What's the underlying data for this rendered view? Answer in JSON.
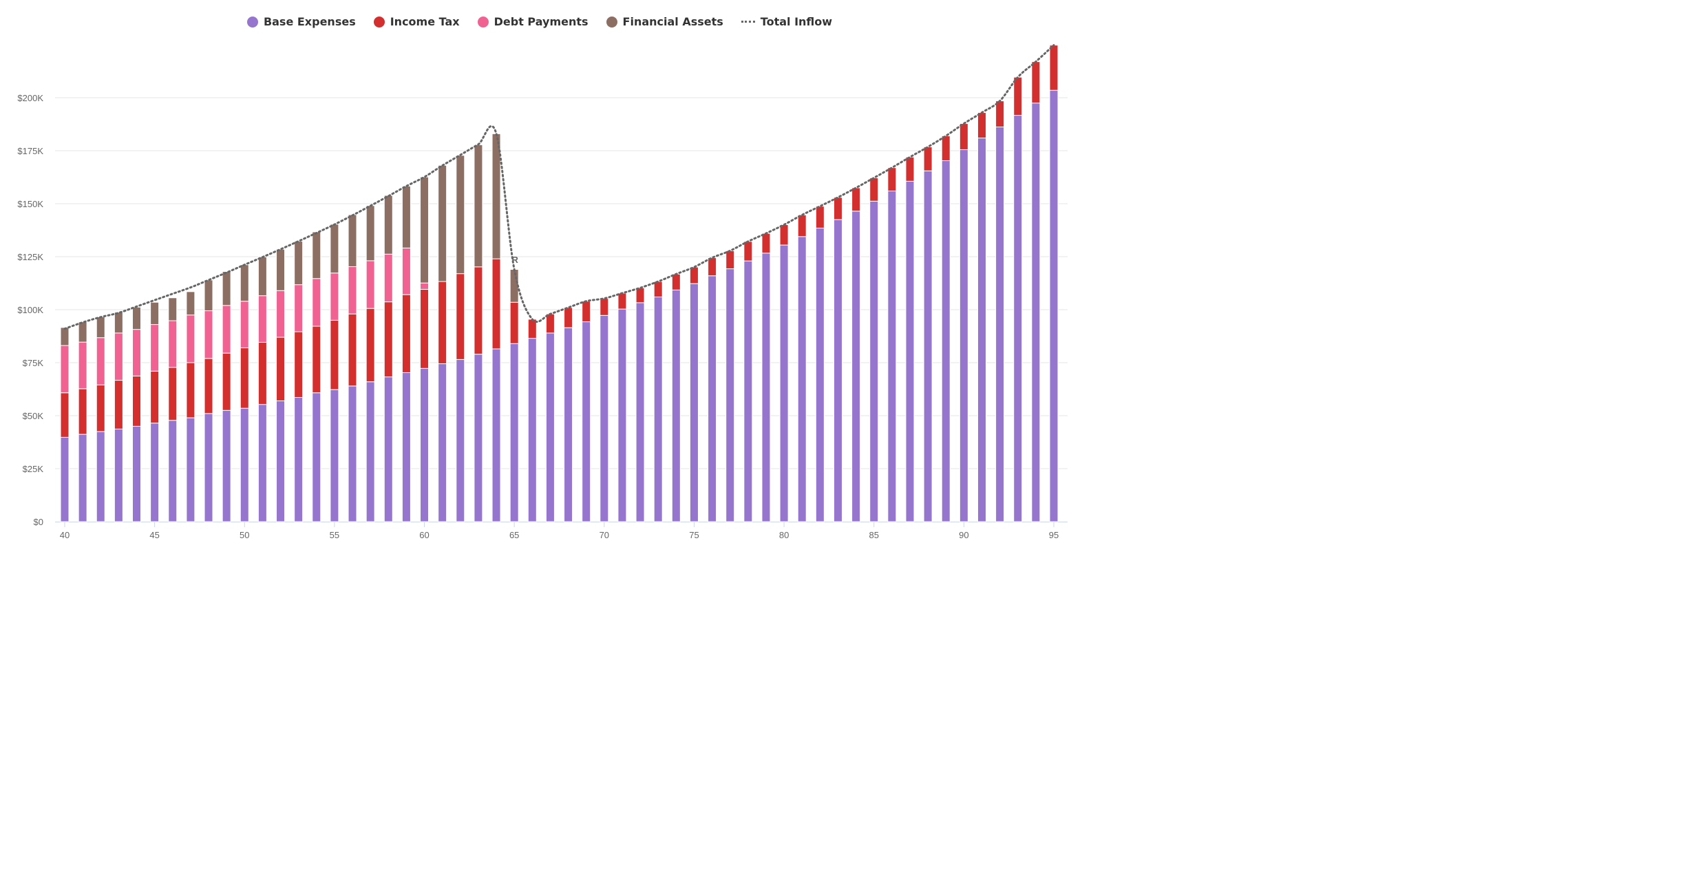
{
  "legend": {
    "base_expenses": "Base Expenses",
    "income_tax": "Income Tax",
    "debt_payments": "Debt Payments",
    "financial_assets": "Financial Assets",
    "total_inflow": "Total Inflow"
  },
  "colors": {
    "base_expenses": "#9575cd",
    "income_tax": "#d32f2f",
    "debt_payments": "#f06292",
    "financial_assets": "#8d6e63",
    "total_inflow": "#666666",
    "grid": "#e6e6e6",
    "axis_text": "#666666"
  },
  "chart_data": {
    "type": "bar",
    "stacked": true,
    "x": [
      40,
      41,
      42,
      43,
      44,
      45,
      46,
      47,
      48,
      49,
      50,
      51,
      52,
      53,
      54,
      55,
      56,
      57,
      58,
      59,
      60,
      61,
      62,
      63,
      64,
      65,
      66,
      67,
      68,
      69,
      70,
      71,
      72,
      73,
      74,
      75,
      76,
      77,
      78,
      79,
      80,
      81,
      82,
      83,
      84,
      85,
      86,
      87,
      88,
      89,
      90,
      91,
      92,
      93,
      94,
      95
    ],
    "ylim": [
      0,
      225000
    ],
    "y_ticks": [
      0,
      25000,
      50000,
      75000,
      100000,
      125000,
      150000,
      175000,
      200000
    ],
    "y_tick_labels": [
      "$0",
      "$25K",
      "$50K",
      "$75K",
      "$100K",
      "$125K",
      "$150K",
      "$175K",
      "$200K"
    ],
    "x_ticks": [
      40,
      45,
      50,
      55,
      60,
      65,
      70,
      75,
      80,
      85,
      90,
      95
    ],
    "x_tick_labels": [
      "40",
      "45",
      "50",
      "55",
      "60",
      "65",
      "70",
      "75",
      "80",
      "85",
      "90",
      "95"
    ],
    "grid": true,
    "legend_position": "top-center",
    "annotation": {
      "x": 65,
      "y": 124000,
      "text": "R"
    },
    "series": [
      {
        "name": "Base Expenses",
        "key": "base_expenses",
        "values": [
          39800,
          41200,
          42500,
          43700,
          45000,
          46500,
          47800,
          49000,
          51000,
          52500,
          53500,
          55300,
          57000,
          58600,
          60800,
          62300,
          64000,
          66000,
          68300,
          70300,
          72300,
          74500,
          76500,
          79000,
          81500,
          84000,
          86500,
          89000,
          91500,
          94300,
          97300,
          100300,
          103300,
          106000,
          109300,
          112300,
          116000,
          119300,
          123000,
          126700,
          130500,
          134500,
          138500,
          142500,
          146500,
          151200,
          156000,
          160600,
          165500,
          170300,
          175500,
          181000,
          186200,
          191700,
          197500,
          203500
        ]
      },
      {
        "name": "Income Tax",
        "key": "income_tax",
        "values": [
          21000,
          21500,
          22000,
          23000,
          23700,
          24500,
          25000,
          26000,
          26000,
          27000,
          28500,
          29300,
          30000,
          31000,
          31400,
          32700,
          34000,
          34600,
          35400,
          36800,
          37300,
          38800,
          40500,
          41200,
          42500,
          19500,
          9000,
          9000,
          9500,
          9700,
          8000,
          7500,
          7000,
          7300,
          7500,
          7800,
          8500,
          8500,
          9200,
          9300,
          9600,
          10200,
          10300,
          10500,
          11000,
          11000,
          11000,
          11400,
          11300,
          11700,
          12300,
          12000,
          12300,
          18000,
          19500,
          21300
        ]
      },
      {
        "name": "Debt Payments",
        "key": "debt_payments",
        "values": [
          22300,
          22000,
          22300,
          22300,
          22000,
          22000,
          22000,
          22500,
          22500,
          22500,
          22000,
          22000,
          22000,
          22200,
          22500,
          22300,
          22300,
          22500,
          22500,
          22000,
          3000,
          0,
          0,
          0,
          0,
          0,
          0,
          0,
          0,
          0,
          0,
          0,
          0,
          0,
          0,
          0,
          0,
          0,
          0,
          0,
          0,
          0,
          0,
          0,
          0,
          0,
          0,
          0,
          0,
          0,
          0,
          0,
          0,
          0,
          0,
          0
        ]
      },
      {
        "name": "Financial Assets",
        "key": "financial_assets",
        "values": [
          8500,
          9500,
          9800,
          9800,
          10500,
          10500,
          10800,
          11000,
          14500,
          16000,
          17200,
          18300,
          19500,
          20500,
          22000,
          23000,
          24500,
          26000,
          27700,
          29200,
          50000,
          54800,
          55800,
          57600,
          59000,
          15500,
          0,
          0,
          0,
          0,
          0,
          0,
          0,
          0,
          0,
          0,
          0,
          0,
          0,
          0,
          0,
          0,
          0,
          0,
          0,
          0,
          0,
          0,
          0,
          0,
          0,
          0,
          0,
          0,
          0,
          0
        ]
      },
      {
        "name": "Total Inflow",
        "key": "total_inflow",
        "type": "line",
        "style": "dotted",
        "values": [
          91000,
          94000,
          96500,
          98500,
          101500,
          104500,
          107500,
          110500,
          114000,
          117500,
          121200,
          124800,
          128500,
          132300,
          136200,
          140200,
          144500,
          149000,
          153600,
          158300,
          162600,
          168000,
          173000,
          178000,
          183000,
          119000,
          95500,
          98000,
          101000,
          104000,
          105300,
          107800,
          110300,
          113300,
          116800,
          120100,
          124500,
          127800,
          132200,
          136000,
          140100,
          144700,
          148800,
          153000,
          157500,
          162200,
          167000,
          172000,
          176800,
          182000,
          187800,
          193000,
          198500,
          209700,
          217000,
          224800
        ]
      }
    ]
  }
}
